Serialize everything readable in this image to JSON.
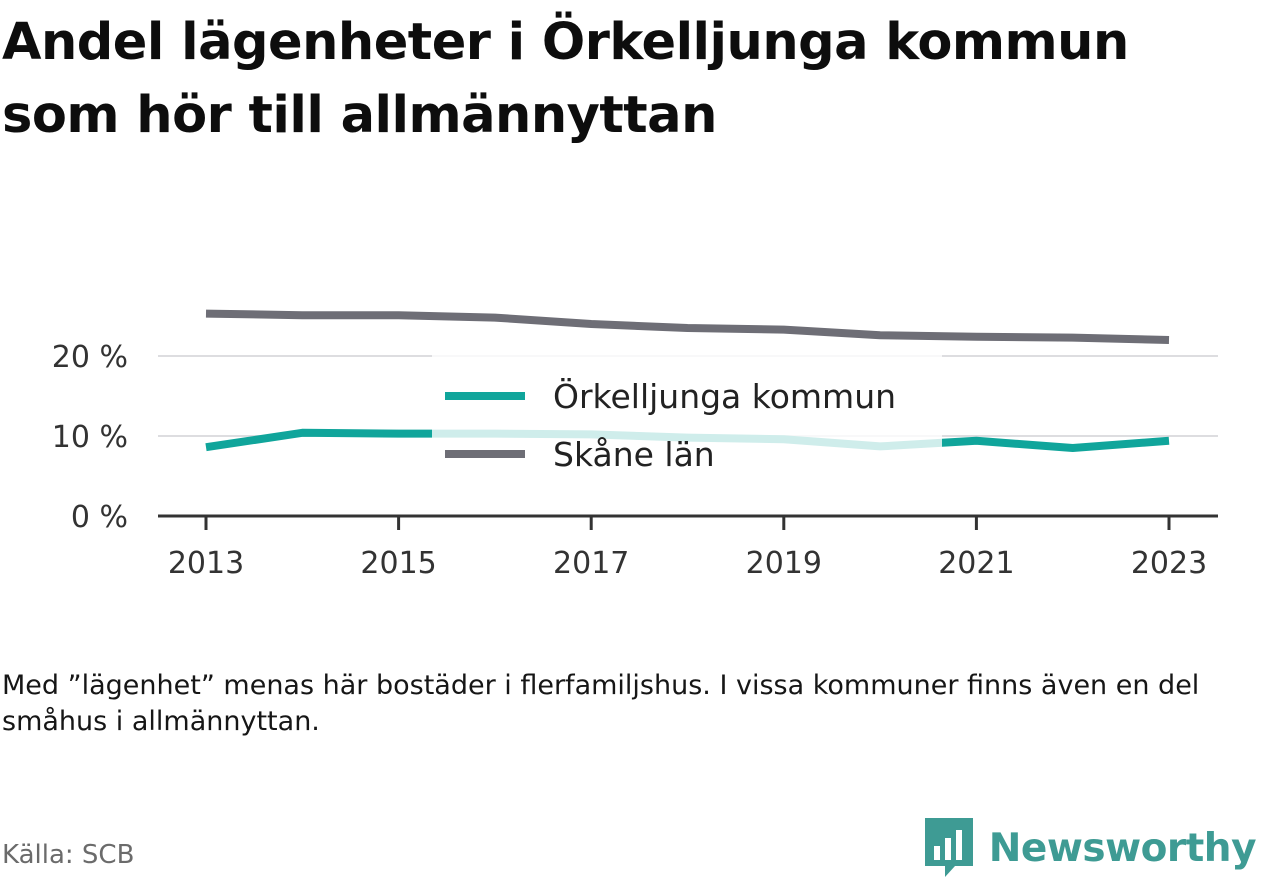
{
  "title": "Andel lägenheter i Örkelljunga kommun som hör till allmännyttan",
  "chart_data": {
    "type": "line",
    "x": [
      2013,
      2014,
      2015,
      2016,
      2017,
      2018,
      2019,
      2020,
      2021,
      2022,
      2023
    ],
    "series": [
      {
        "name": "Örkelljunga kommun",
        "color": "#10a59b",
        "values": [
          8.6,
          10.4,
          10.3,
          10.3,
          10.2,
          9.8,
          9.6,
          8.7,
          9.4,
          8.5,
          9.4
        ]
      },
      {
        "name": "Skåne län",
        "color": "#6e6e76",
        "values": [
          25.3,
          25.1,
          25.1,
          24.8,
          24.0,
          23.5,
          23.3,
          22.6,
          22.4,
          22.3,
          22.0
        ]
      }
    ],
    "y_ticks": [
      0,
      10,
      20
    ],
    "y_tick_labels": [
      "0 %",
      "10 %",
      "20 %"
    ],
    "x_ticks": [
      2013,
      2015,
      2017,
      2019,
      2021,
      2023
    ],
    "x_tick_labels": [
      "2013",
      "2015",
      "2017",
      "2019",
      "2021",
      "2023"
    ],
    "ylim": [
      0,
      28
    ],
    "xlim": [
      2012.5,
      2023.5
    ],
    "grid": true,
    "legend": "center"
  },
  "note": "Med ”lägenhet” menas här bostäder i flerfamiljshus. I vissa kommuner finns även en del småhus i allmännyttan.",
  "source": "Källa: SCB",
  "brand": {
    "name": "Newsworthy",
    "icon": "bar-chart-icon",
    "color": "#3e9b94"
  }
}
